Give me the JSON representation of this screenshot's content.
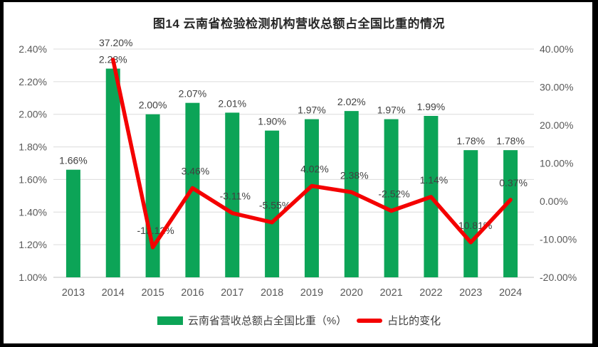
{
  "title": "图14 云南省检验检测机构营收总额占全国比重的情况",
  "colors": {
    "bar": "#0CA457",
    "line": "#F40000",
    "gridline": "#DCDCDC",
    "axis_line": "#C0C0C0",
    "axis_text": "#595959",
    "label_text": "#404040",
    "title_text": "#262626",
    "frame": "#000000"
  },
  "chart_data": {
    "type": "bar",
    "subtype": "combo-bar-line-dual-axis",
    "title": "图14 云南省检验检测机构营收总额占全国比重的情况",
    "categories": [
      "2013",
      "2014",
      "2015",
      "2016",
      "2017",
      "2018",
      "2019",
      "2020",
      "2021",
      "2022",
      "2023",
      "2024"
    ],
    "series": [
      {
        "name": "云南省营收总额占全国比重（%）",
        "type": "bar",
        "axis": "left",
        "color": "#0CA457",
        "values": [
          1.66,
          2.28,
          2.0,
          2.07,
          2.01,
          1.9,
          1.97,
          2.02,
          1.97,
          1.99,
          1.78,
          1.78
        ],
        "labels": [
          "1.66%",
          "2.28%",
          "2.00%",
          "2.07%",
          "2.01%",
          "1.90%",
          "1.97%",
          "2.02%",
          "1.97%",
          "1.99%",
          "1.78%",
          "1.78%"
        ]
      },
      {
        "name": "占比的变化",
        "type": "line",
        "axis": "right",
        "color": "#F40000",
        "values": [
          null,
          37.2,
          -12.12,
          3.46,
          -3.11,
          -5.55,
          4.02,
          2.38,
          -2.52,
          1.14,
          -10.81,
          0.37
        ],
        "labels": [
          null,
          "37.20%",
          "-12.12%",
          "3.46%",
          "-3.11%",
          "-5.55%",
          "4.02%",
          "2.38%",
          "-2.52%",
          "1.14%",
          "-10.81%",
          "0.37%"
        ]
      }
    ],
    "left_axis": {
      "min": 1.0,
      "max": 2.4,
      "step": 0.2,
      "ticks": [
        "2.40%",
        "2.20%",
        "2.00%",
        "1.80%",
        "1.60%",
        "1.40%",
        "1.20%",
        "1.00%"
      ]
    },
    "right_axis": {
      "min": -20,
      "max": 40,
      "step": 10,
      "ticks": [
        "40.00%",
        "30.00%",
        "20.00%",
        "10.00%",
        "0.00%",
        "-10.00%",
        "-20.00%"
      ]
    },
    "grid": true,
    "legend_position": "bottom"
  }
}
